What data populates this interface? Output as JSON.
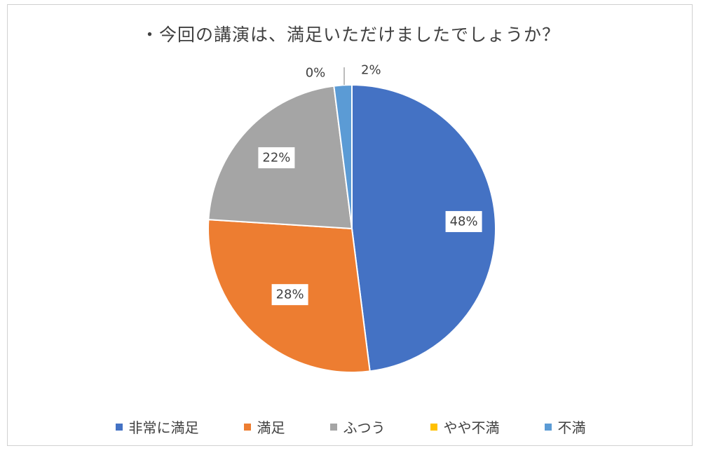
{
  "chart_data": {
    "type": "pie",
    "title": "・今回の講演は、満足いただけましたでしょうか？",
    "categories": [
      "非常に満足",
      "満足",
      "ふつう",
      "やや不満",
      "不満"
    ],
    "values": [
      48,
      28,
      22,
      0,
      2
    ],
    "value_labels": [
      "48%",
      "28%",
      "22%",
      "0%",
      "2%"
    ],
    "colors": [
      "#4472C4",
      "#ED7D31",
      "#A5A5A5",
      "#FFC000",
      "#5B9BD5"
    ],
    "legend_position": "bottom",
    "start_angle": "top, clockwise"
  }
}
